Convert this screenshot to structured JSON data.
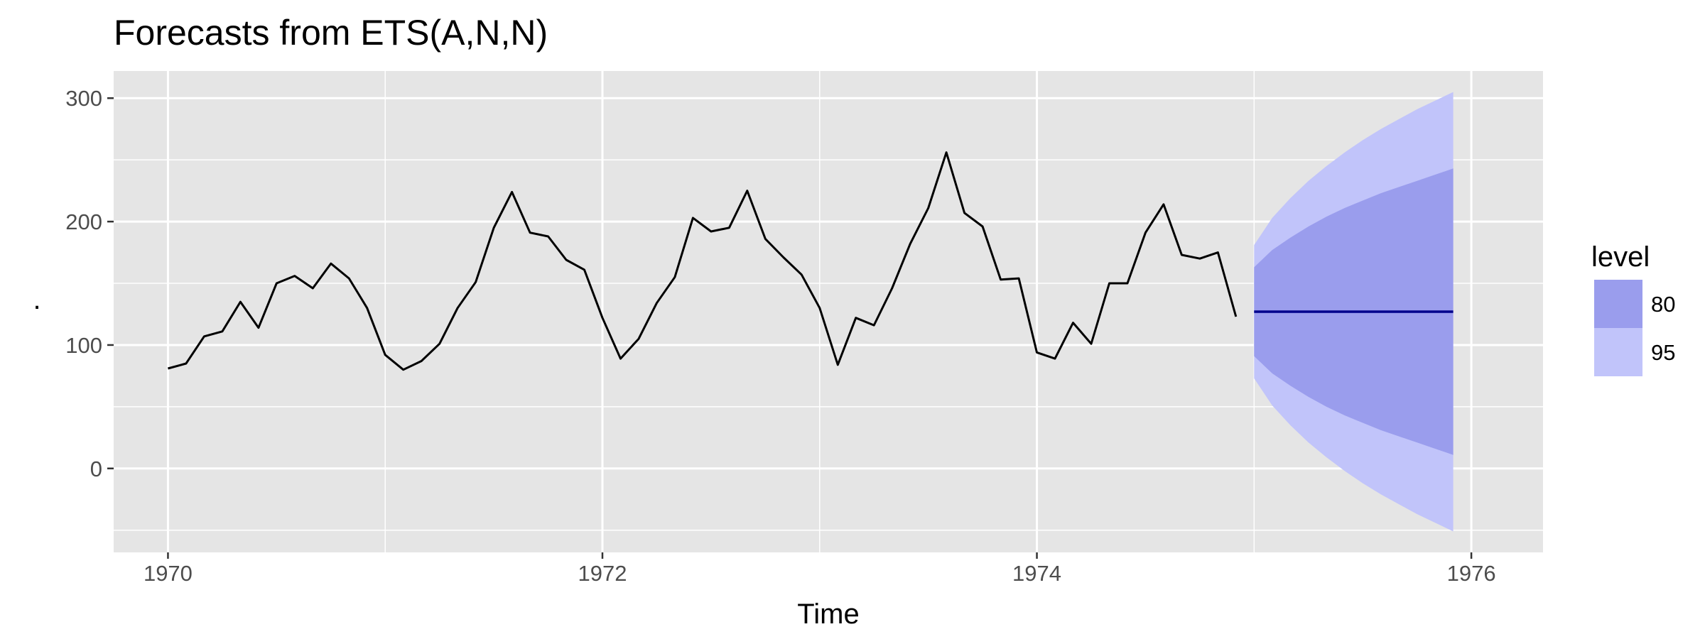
{
  "chart_data": {
    "type": "line",
    "title": "Forecasts from ETS(A,N,N)",
    "xlabel": "Time",
    "ylabel": ".",
    "xlim": [
      1969.75,
      1976.33
    ],
    "ylim": [
      -68,
      322
    ],
    "x_ticks": [
      1970,
      1972,
      1974,
      1976
    ],
    "x_tick_labels": [
      "1970",
      "1972",
      "1974",
      "1976"
    ],
    "y_ticks": [
      0,
      100,
      200,
      300
    ],
    "y_tick_labels": [
      "0",
      "100",
      "200",
      "300"
    ],
    "grid": true,
    "legend": {
      "title": "level",
      "placement": "right",
      "entries": [
        {
          "label": "80",
          "color": "#9a9ded"
        },
        {
          "label": "95",
          "color": "#c1c4fa"
        }
      ]
    },
    "series": [
      {
        "type": "line",
        "color": "#000000",
        "x_start": 1970,
        "frequency": 12,
        "values": [
          81,
          85,
          107,
          111,
          135,
          114,
          150,
          156,
          146,
          166,
          154,
          130,
          92,
          80,
          87,
          101,
          130,
          151,
          195,
          224,
          191,
          188,
          169,
          161,
          122,
          89,
          105,
          134,
          155,
          203,
          192,
          195,
          225,
          186,
          171,
          157,
          130,
          84,
          122,
          116,
          146,
          182,
          211,
          256,
          207,
          196,
          153,
          154,
          94,
          89,
          118,
          101,
          150,
          150,
          191,
          214,
          173,
          170,
          175,
          123
        ]
      },
      {
        "type": "forecast",
        "color": "#00008b",
        "x_start": 1975,
        "frequency": 12,
        "point_forecast": 127,
        "values": [
          127,
          127,
          127,
          127,
          127,
          127,
          127,
          127,
          127,
          127,
          127,
          127
        ],
        "lower_80": [
          91,
          77,
          67,
          58,
          50,
          43,
          37,
          31,
          26,
          21,
          16,
          11
        ],
        "upper_80": [
          163,
          177,
          187,
          196,
          204,
          211,
          217,
          223,
          228,
          233,
          238,
          243
        ],
        "lower_95": [
          73,
          51,
          35,
          21,
          9,
          -2,
          -12,
          -21,
          -29,
          -37,
          -44,
          -51
        ],
        "upper_95": [
          181,
          203,
          219,
          233,
          245,
          256,
          266,
          275,
          283,
          291,
          298,
          305
        ]
      }
    ],
    "colors": {
      "panel": "#e5e5e5",
      "grid": "#ffffff",
      "band80": "#9a9ded",
      "band95": "#c1c4fa",
      "history_line": "#000000",
      "forecast_line": "#00008b"
    }
  }
}
